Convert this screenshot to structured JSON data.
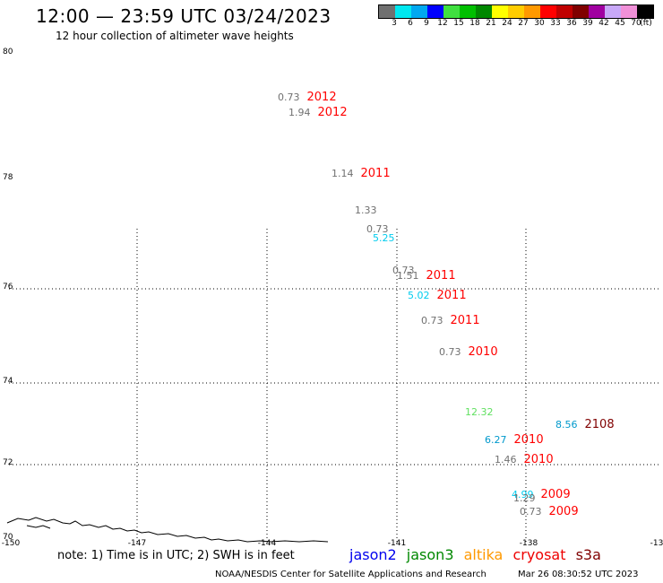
{
  "header": {
    "title": "12:00 — 23:59 UTC 03/24/2023",
    "subtitle": "12 hour collection of altimeter wave heights"
  },
  "color_scale": {
    "colors": [
      "#707070",
      "#00e8f0",
      "#00a8f0",
      "#0000ff",
      "#40e040",
      "#00c000",
      "#008800",
      "#ffff00",
      "#ffcc00",
      "#ff9900",
      "#ff0000",
      "#c00000",
      "#800000",
      "#a000a0",
      "#c8a8f8",
      "#f090d8",
      "#000000"
    ],
    "labels": [
      "3",
      "6",
      "9",
      "12",
      "15",
      "18",
      "21",
      "24",
      "27",
      "30",
      "33",
      "36",
      "39",
      "42",
      "45",
      "70",
      "(ft)"
    ]
  },
  "map": {
    "lat_labels": [
      "80",
      "78",
      "76",
      "74",
      "72",
      "70"
    ],
    "lon_labels": [
      "-150",
      "-147",
      "-144",
      "-141",
      "-138",
      "-13"
    ]
  },
  "observations": [
    {
      "swh": "0.73",
      "time": "2012",
      "swh_color": "#707070",
      "time_color": "#ff0000"
    },
    {
      "swh": "1.94",
      "time": "2012",
      "swh_color": "#707070",
      "time_color": "#ff0000"
    },
    {
      "swh": "1.14",
      "time": "2011",
      "swh_color": "#707070",
      "time_color": "#ff0000"
    },
    {
      "swh": "1.33",
      "time": "",
      "swh_color": "#707070",
      "time_color": "#ff0000"
    },
    {
      "swh": "0.73",
      "time": "",
      "swh_color": "#707070",
      "time_color": "#ff0000"
    },
    {
      "swh": "5.25",
      "time": "",
      "swh_color": "#00ccee",
      "time_color": "#ff0000"
    },
    {
      "swh": "0.73",
      "time": "",
      "swh_color": "#707070",
      "time_color": "#ff0000"
    },
    {
      "swh": "1.51",
      "time": "2011",
      "swh_color": "#707070",
      "time_color": "#ff0000"
    },
    {
      "swh": "5.02",
      "time": "2011",
      "swh_color": "#00ccee",
      "time_color": "#ff0000"
    },
    {
      "swh": "0.73",
      "time": "2011",
      "swh_color": "#707070",
      "time_color": "#ff0000"
    },
    {
      "swh": "0.73",
      "time": "2010",
      "swh_color": "#707070",
      "time_color": "#ff0000"
    },
    {
      "swh": "12.32",
      "time": "",
      "swh_color": "#60e060",
      "time_color": "#ff0000"
    },
    {
      "swh": "8.56",
      "time": "2108",
      "swh_color": "#0099cc",
      "time_color": "#800000"
    },
    {
      "swh": "6.27",
      "time": "2010",
      "swh_color": "#0099cc",
      "time_color": "#ff0000"
    },
    {
      "swh": "1.46",
      "time": "2010",
      "swh_color": "#707070",
      "time_color": "#ff0000"
    },
    {
      "swh": "4.99",
      "time": "2009",
      "swh_color": "#00ccee",
      "time_color": "#ff0000"
    },
    {
      "swh": "1.29",
      "time": "",
      "swh_color": "#707070",
      "time_color": "#ff0000"
    },
    {
      "swh": "0.73",
      "time": "2009",
      "swh_color": "#707070",
      "time_color": "#ff0000"
    }
  ],
  "note": "note:  1) Time is in UTC;  2) SWH is in feet",
  "legend": [
    {
      "label": "jason2",
      "color": "#0000ee"
    },
    {
      "label": "jason3",
      "color": "#008800"
    },
    {
      "label": "altika",
      "color": "#ff9900"
    },
    {
      "label": "cryosat",
      "color": "#ee0000"
    },
    {
      "label": "s3a",
      "color": "#800000"
    }
  ],
  "footer": {
    "left": "NOAA/NESDIS Center for Satellite Applications and Research",
    "right": "Mar 26 08:30:52 UTC 2023"
  }
}
